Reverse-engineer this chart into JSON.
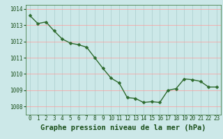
{
  "x": [
    0,
    1,
    2,
    3,
    4,
    5,
    6,
    7,
    8,
    9,
    10,
    11,
    12,
    13,
    14,
    15,
    16,
    17,
    18,
    19,
    20,
    21,
    22,
    23
  ],
  "y": [
    1013.6,
    1013.1,
    1013.2,
    1012.65,
    1012.15,
    1011.9,
    1011.8,
    1011.65,
    1011.0,
    1010.35,
    1009.75,
    1009.45,
    1008.55,
    1008.5,
    1008.25,
    1008.3,
    1008.25,
    1009.0,
    1009.1,
    1009.7,
    1009.65,
    1009.55,
    1009.2,
    1009.2
  ],
  "line_color": "#2d6a2d",
  "marker_color": "#2d6a2d",
  "bg_color": "#cce8e8",
  "grid_color_v": "#aacccc",
  "grid_color_h": "#ff9999",
  "title": "Graphe pression niveau de la mer (hPa)",
  "title_color": "#1a4f1a",
  "ylim": [
    1007.5,
    1014.25
  ],
  "yticks": [
    1008,
    1009,
    1010,
    1011,
    1012,
    1013,
    1014
  ],
  "xticks": [
    0,
    1,
    2,
    3,
    4,
    5,
    6,
    7,
    8,
    9,
    10,
    11,
    12,
    13,
    14,
    15,
    16,
    17,
    18,
    19,
    20,
    21,
    22,
    23
  ],
  "xtick_labels": [
    "0",
    "1",
    "2",
    "3",
    "4",
    "5",
    "6",
    "7",
    "8",
    "9",
    "10",
    "11",
    "12",
    "13",
    "14",
    "15",
    "16",
    "17",
    "18",
    "19",
    "20",
    "21",
    "22",
    "23"
  ],
  "title_fontsize": 7.5,
  "tick_fontsize": 5.5,
  "marker_size": 2.5,
  "line_width": 1.0
}
